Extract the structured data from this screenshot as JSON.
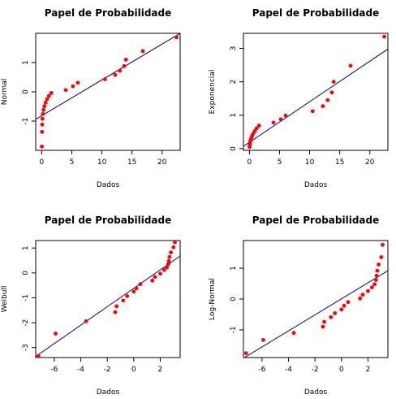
{
  "chart_data": [
    {
      "type": "scatter",
      "title": "Papel de Probabilidade",
      "xlabel": "Dados",
      "ylabel": "Normal",
      "xlim": [
        -1,
        23
      ],
      "ylim": [
        -2.0,
        2.0
      ],
      "xticks": [
        0,
        5,
        10,
        15,
        20
      ],
      "yticks": [
        -1,
        0,
        1
      ],
      "points": {
        "x": [
          0.02,
          0.05,
          0.08,
          0.12,
          0.2,
          0.3,
          0.45,
          0.65,
          0.9,
          1.2,
          1.6,
          4.0,
          5.2,
          6.0,
          10.5,
          12.2,
          13.0,
          13.7,
          14.0,
          16.8,
          22.4
        ],
        "y": [
          -1.87,
          -1.37,
          -1.12,
          -0.92,
          -0.76,
          -0.62,
          -0.49,
          -0.37,
          -0.25,
          -0.14,
          -0.04,
          0.06,
          0.19,
          0.31,
          0.43,
          0.58,
          0.72,
          0.88,
          1.1,
          1.39,
          1.86
        ]
      },
      "line": {
        "x": [
          -1,
          23
        ],
        "y": [
          -0.94,
          2.0
        ]
      },
      "colors": {
        "points": "#ff0000",
        "line": "#00008b"
      }
    },
    {
      "type": "scatter",
      "title": "Papel de Probabilidade",
      "xlabel": "Dados",
      "ylabel": "Exponencial",
      "xlim": [
        -1,
        23
      ],
      "ylim": [
        -0.05,
        3.45
      ],
      "xticks": [
        0,
        5,
        10,
        15,
        20
      ],
      "yticks": [
        0.0,
        1.0,
        2.0,
        3.0
      ],
      "points": {
        "x": [
          0.02,
          0.05,
          0.08,
          0.12,
          0.2,
          0.3,
          0.45,
          0.65,
          0.9,
          1.2,
          1.6,
          4.0,
          5.2,
          6.0,
          10.5,
          12.2,
          13.0,
          13.7,
          14.0,
          16.8,
          22.4
        ],
        "y": [
          0.05,
          0.1,
          0.15,
          0.2,
          0.26,
          0.32,
          0.39,
          0.46,
          0.53,
          0.61,
          0.69,
          0.78,
          0.88,
          0.99,
          1.12,
          1.27,
          1.45,
          1.68,
          2.0,
          2.48,
          3.35
        ]
      },
      "line": {
        "x": [
          -1,
          23
        ],
        "y": [
          0.07,
          2.98
        ]
      },
      "colors": {
        "points": "#ff0000",
        "line": "#00008b"
      }
    },
    {
      "type": "scatter",
      "title": "Papel de Probabilidade",
      "xlabel": "Dados",
      "ylabel": "Weibull",
      "xlim": [
        -7.4,
        3.5
      ],
      "ylim": [
        -3.4,
        1.3
      ],
      "xticks": [
        -6,
        -4,
        -2,
        0,
        2
      ],
      "yticks": [
        -3,
        -2,
        -1,
        0,
        1
      ],
      "points": {
        "x": [
          -7.2,
          -5.9,
          -3.6,
          -1.4,
          -1.3,
          -0.8,
          -0.5,
          0.0,
          0.2,
          0.5,
          1.4,
          1.6,
          2.0,
          2.3,
          2.5,
          2.6,
          2.65,
          2.7,
          2.8,
          3.0,
          3.1
        ],
        "y": [
          -3.34,
          -2.44,
          -1.94,
          -1.58,
          -1.34,
          -1.11,
          -0.93,
          -0.75,
          -0.62,
          -0.45,
          -0.31,
          -0.16,
          -0.03,
          0.12,
          0.22,
          0.35,
          0.48,
          0.64,
          0.82,
          1.03,
          1.23
        ]
      },
      "line": {
        "x": [
          -7.4,
          3.5
        ],
        "y": [
          -3.36,
          0.68
        ]
      },
      "colors": {
        "points": "#ff0000",
        "line": "#00008b"
      }
    },
    {
      "type": "scatter",
      "title": "Papel de Probabilidade",
      "xlabel": "Dados",
      "ylabel": "Log-Normal",
      "xlim": [
        -7.4,
        3.5
      ],
      "ylim": [
        -1.9,
        1.9
      ],
      "xticks": [
        -6,
        -4,
        -2,
        0,
        2
      ],
      "yticks": [
        -1,
        0,
        1
      ],
      "points": {
        "x": [
          -7.2,
          -5.9,
          -3.6,
          -1.4,
          -1.3,
          -0.8,
          -0.5,
          0.0,
          0.2,
          0.5,
          1.4,
          1.6,
          2.0,
          2.3,
          2.5,
          2.6,
          2.65,
          2.7,
          2.8,
          3.0,
          3.1
        ],
        "y": [
          -1.76,
          -1.33,
          -1.1,
          -0.9,
          -0.74,
          -0.59,
          -0.46,
          -0.34,
          -0.22,
          -0.1,
          0.02,
          0.14,
          0.26,
          0.38,
          0.48,
          0.62,
          0.76,
          0.92,
          1.12,
          1.36,
          1.76
        ]
      },
      "line": {
        "x": [
          -7.4,
          3.5
        ],
        "y": [
          -1.92,
          0.92
        ]
      },
      "colors": {
        "points": "#ff0000",
        "line": "#00008b"
      }
    }
  ]
}
